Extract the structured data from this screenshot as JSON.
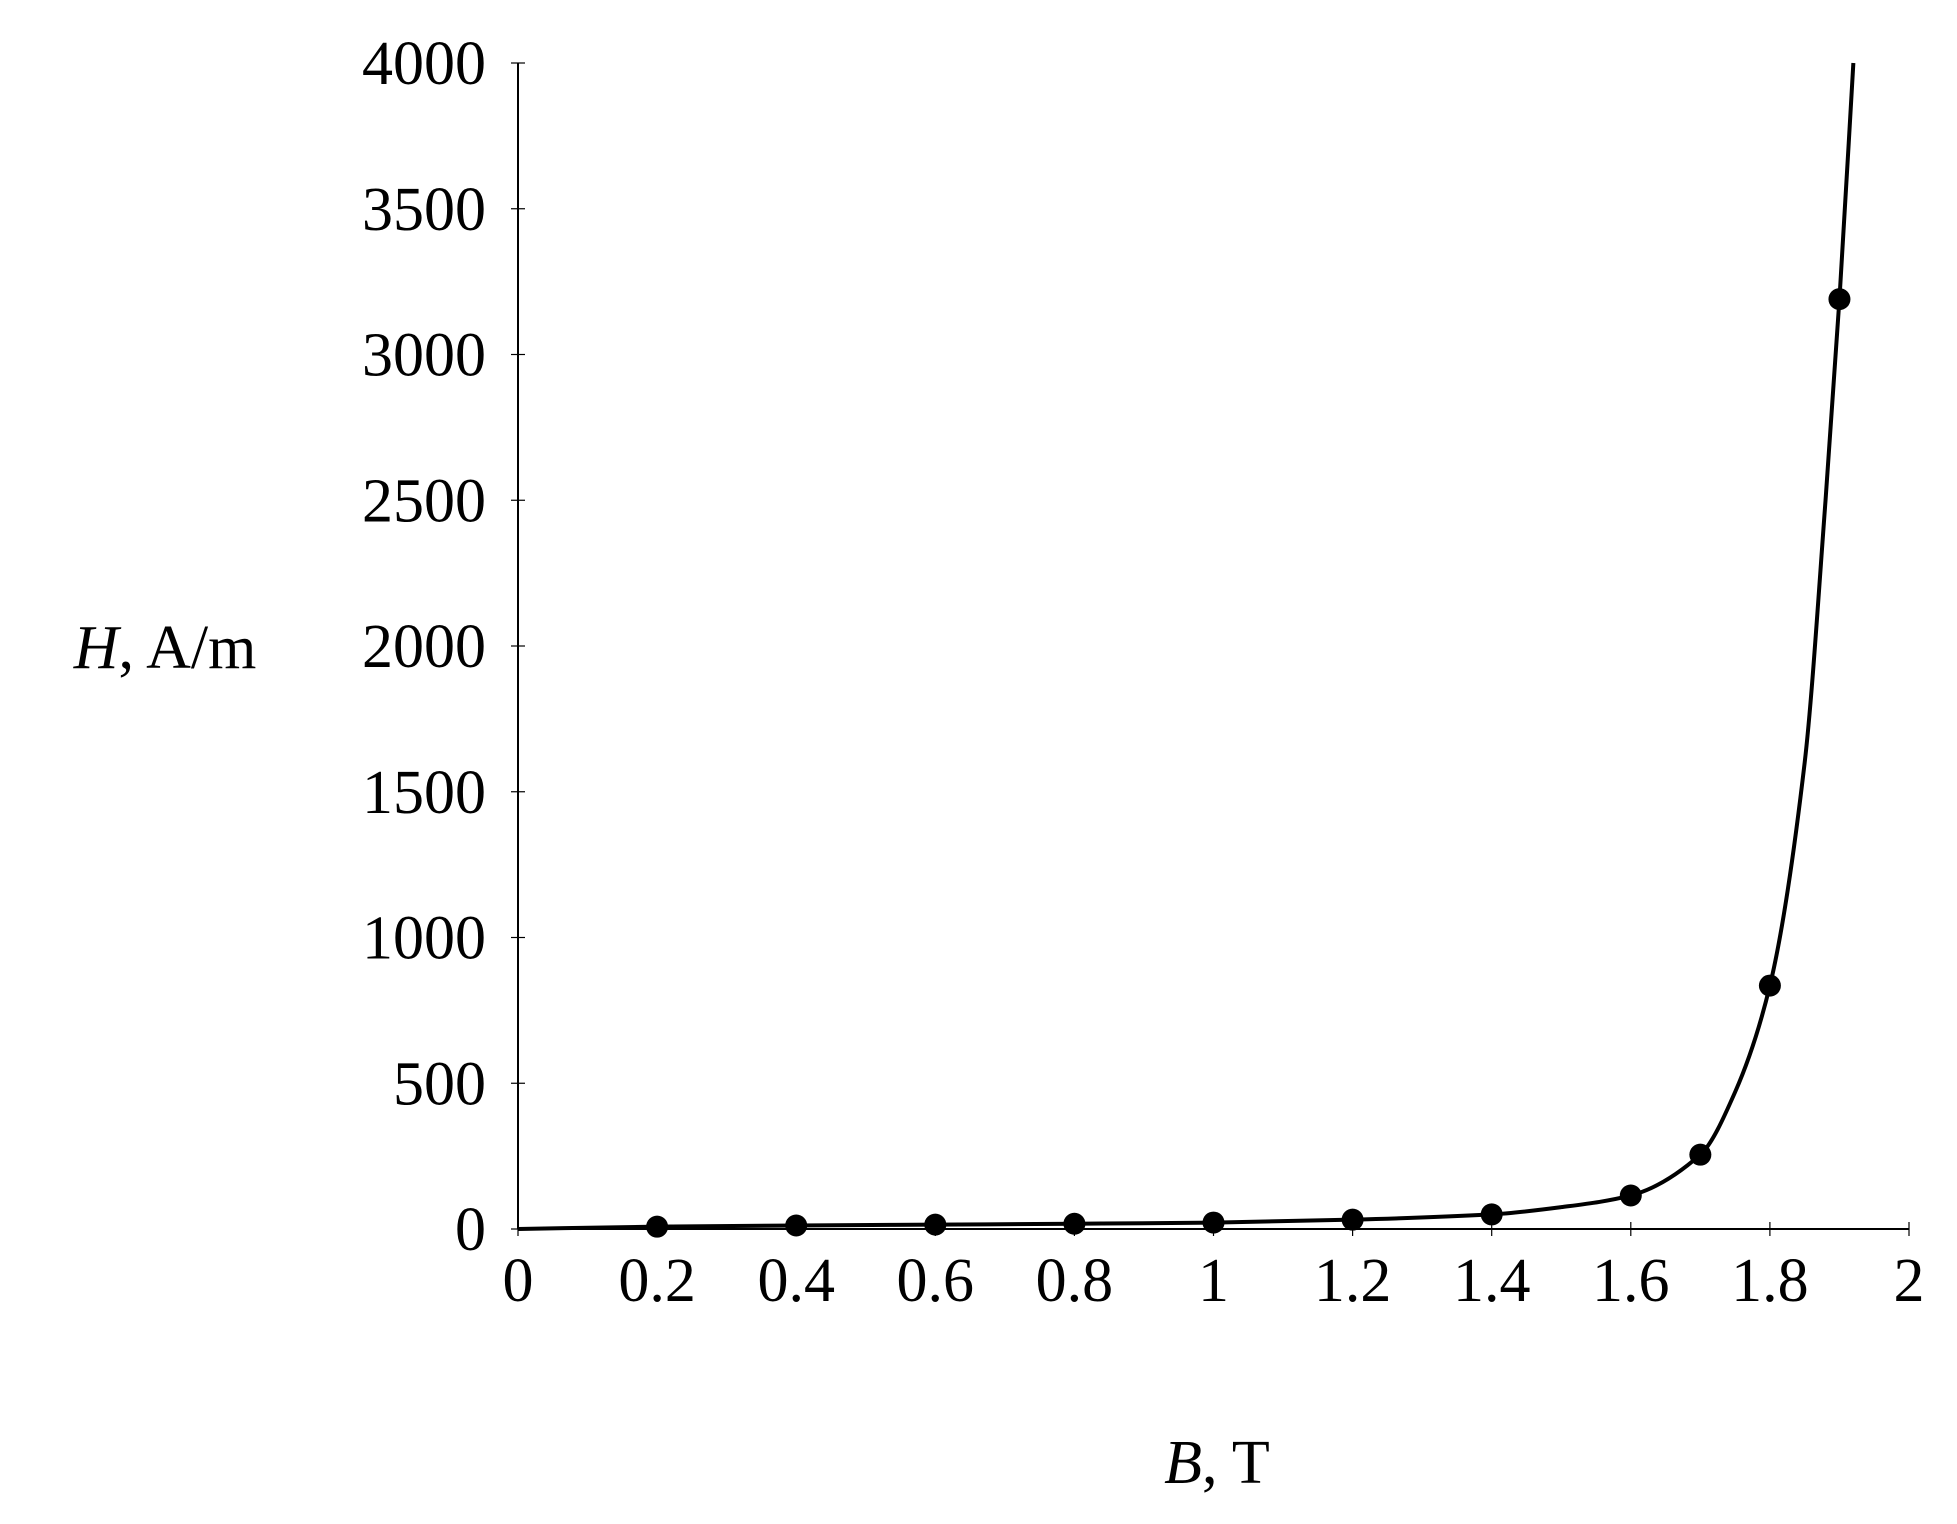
{
  "chart_data": {
    "type": "line",
    "x_label_symbol": "B",
    "x_label_unit": ", T",
    "y_label_symbol": "H",
    "y_label_unit": ", A/m",
    "xlim": [
      0,
      2
    ],
    "xticks": [
      0,
      0.2,
      0.4,
      0.6,
      0.8,
      1,
      1.2,
      1.4,
      1.6,
      1.8,
      2
    ],
    "ylim": [
      0,
      4000
    ],
    "yticks": [
      0,
      500,
      1000,
      1500,
      2000,
      2500,
      3000,
      3500,
      4000
    ],
    "grid": false,
    "series": [
      {
        "kind": "line",
        "color": "#000000",
        "x": [
          0,
          0.2,
          0.4,
          0.6,
          0.8,
          1,
          1.2,
          1.4,
          1.5,
          1.6,
          1.7,
          1.75,
          1.8,
          1.85,
          1.88,
          1.9,
          1.92
        ],
        "values": [
          0,
          8,
          12,
          15,
          18,
          22,
          32,
          50,
          75,
          115,
          255,
          470,
          835,
          1600,
          2500,
          3190,
          4000
        ]
      },
      {
        "kind": "scatter",
        "color": "#000000",
        "x": [
          0.2,
          0.4,
          0.6,
          0.8,
          1,
          1.2,
          1.4,
          1.6,
          1.7,
          1.8,
          1.9
        ],
        "values": [
          8,
          12,
          15,
          18,
          22,
          32,
          50,
          115,
          255,
          835,
          3190
        ]
      }
    ]
  }
}
